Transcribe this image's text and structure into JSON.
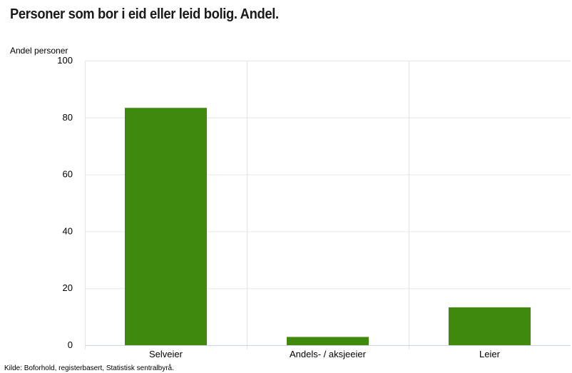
{
  "title": "Personer som bor i eid eller leid bolig. Andel.",
  "source": "Kilde: Boforhold, registerbasert, Statistisk sentralbyrå.",
  "chart_data": {
    "type": "bar",
    "title": "Personer som bor i eid eller leid bolig. Andel.",
    "ylabel": "Andel personer",
    "xlabel": "",
    "categories": [
      "Selveier",
      "Andels- / aksjeeier",
      "Leier"
    ],
    "values": [
      83.4,
      2.9,
      13.3
    ],
    "ylim": [
      0,
      100
    ],
    "yticks": [
      0,
      20,
      40,
      60,
      80,
      100
    ],
    "grid": true,
    "legend": "none",
    "bar_color": "#3f8a0d"
  }
}
